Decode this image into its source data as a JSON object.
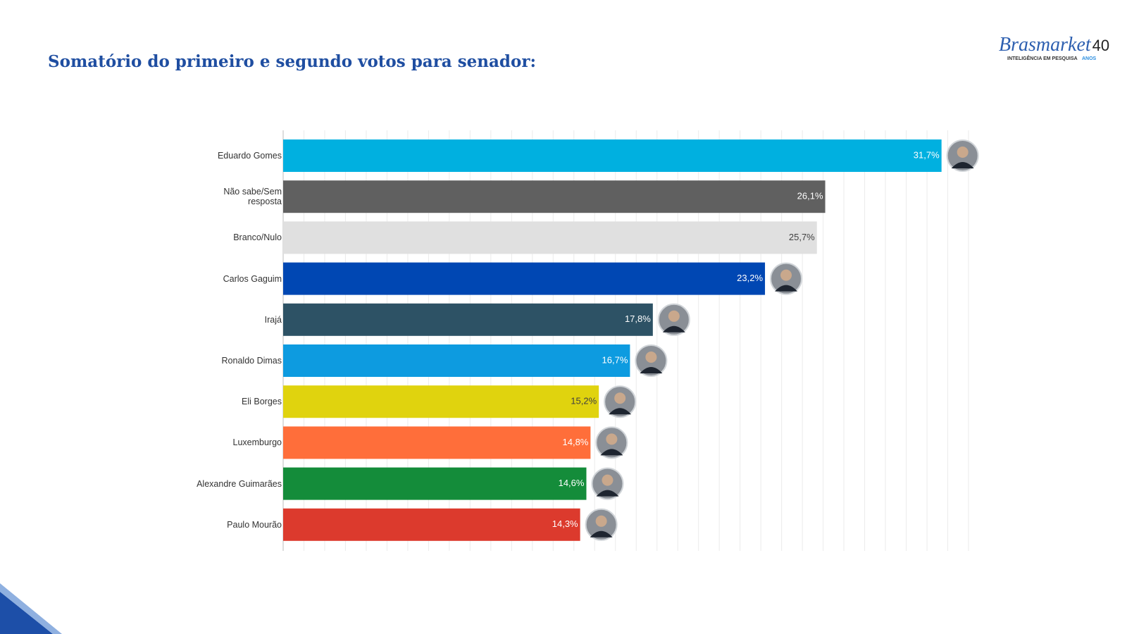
{
  "chart_data": {
    "type": "hbar",
    "title": "Somatório do primeiro e segundo votos para senador:",
    "logo": {
      "name": "Brasmarket",
      "tagline": "INTELIGÊNCIA EM PESQUISA",
      "years": "40",
      "years_label": "ANOS"
    },
    "categories": [
      "Eduardo Gomes",
      "Não sabe/Sem resposta",
      "Branco/Nulo",
      "Carlos Gaguim",
      "Irajá",
      "Ronaldo Dimas",
      "Eli Borges",
      "Luxemburgo",
      "Alexandre Guimarães",
      "Paulo Mourão"
    ],
    "values": [
      31.7,
      26.1,
      25.7,
      23.2,
      17.8,
      16.7,
      15.2,
      14.8,
      14.6,
      14.3
    ],
    "value_labels": [
      "31,7%",
      "26,1%",
      "25,7%",
      "23,2%",
      "17,8%",
      "16,7%",
      "15,2%",
      "14,8%",
      "14,6%",
      "14,3%"
    ],
    "colors": [
      "#00b0e0",
      "#606060",
      "#e0e0e0",
      "#0047b3",
      "#2d5265",
      "#0d9be0",
      "#e0d30e",
      "#ff6e3a",
      "#148c3a",
      "#dc3a2d"
    ],
    "label_colors": [
      "#ffffff",
      "#ffffff",
      "#404040",
      "#ffffff",
      "#ffffff",
      "#ffffff",
      "#404040",
      "#ffffff",
      "#ffffff",
      "#ffffff"
    ],
    "xlim": [
      0,
      33
    ],
    "xticks": [
      0,
      1,
      2,
      3,
      4,
      5,
      6,
      7,
      8,
      9,
      10,
      11,
      12,
      13,
      14,
      15,
      16,
      17,
      18,
      19,
      20,
      21,
      22,
      23,
      24,
      25,
      26,
      27,
      28,
      29,
      30,
      31,
      32,
      33
    ],
    "grid": true
  }
}
